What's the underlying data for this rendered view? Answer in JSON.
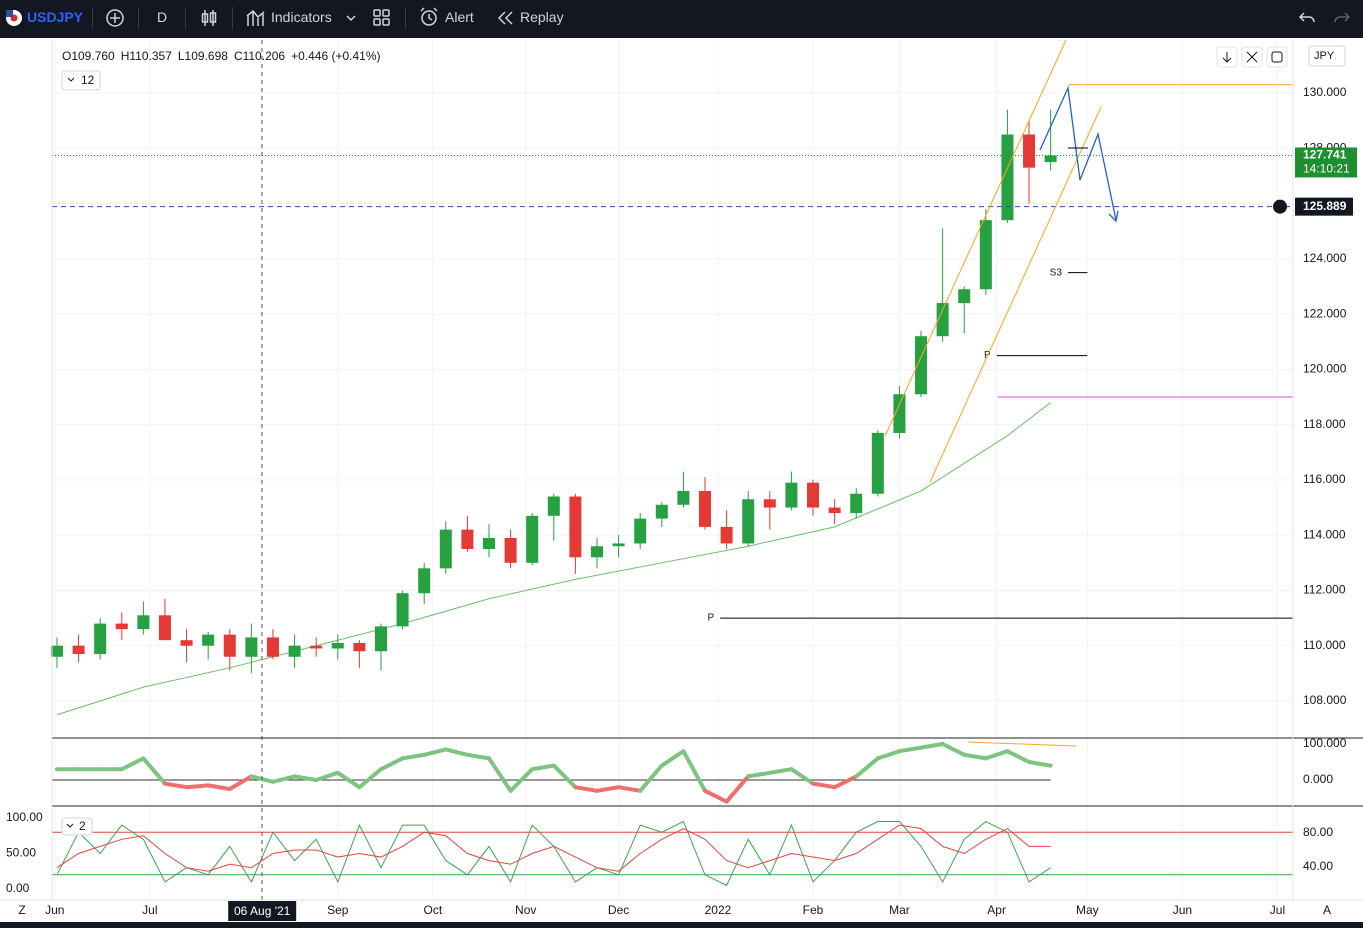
{
  "toolbar": {
    "symbol": "USDJPY",
    "interval": "D",
    "indicators": "Indicators",
    "alert": "Alert",
    "replay": "Replay"
  },
  "legend": {
    "ohlc": [
      "O109.760",
      "H110.357",
      "L109.698",
      "C110.206",
      "+0.446 (+0.41%)"
    ],
    "indicator_count": "12",
    "stoch_count": "2"
  },
  "currency": "JPY",
  "corner_labels": [
    "Z",
    "A"
  ],
  "chart_data": [
    {
      "type": "candlestick",
      "up_color": "#26a041",
      "down_color": "#e53935",
      "x": [
        0,
        1,
        2,
        3,
        4,
        5,
        6,
        7,
        8,
        9,
        10,
        11,
        12,
        13,
        14,
        15,
        16,
        17,
        18,
        19,
        20,
        21,
        22,
        23,
        24,
        25,
        26,
        27,
        28,
        29,
        30,
        31,
        32,
        33,
        34,
        35,
        36,
        37,
        38,
        39,
        40,
        41,
        42,
        43,
        44,
        45,
        46
      ],
      "open": [
        109.6,
        110.0,
        109.7,
        110.8,
        110.6,
        111.1,
        110.2,
        110.0,
        110.4,
        109.6,
        110.3,
        109.6,
        110.0,
        109.9,
        110.1,
        109.8,
        110.7,
        111.9,
        112.8,
        114.2,
        113.5,
        113.9,
        113.0,
        114.7,
        115.4,
        113.2,
        113.6,
        113.7,
        114.6,
        115.1,
        115.6,
        114.3,
        113.7,
        115.3,
        115.0,
        115.9,
        115.0,
        114.8,
        115.5,
        117.7,
        119.1,
        121.2,
        122.4,
        122.9,
        125.4,
        128.5,
        127.5
      ],
      "high": [
        110.3,
        110.4,
        111.0,
        111.2,
        111.6,
        111.7,
        110.6,
        110.5,
        110.6,
        110.8,
        110.6,
        110.4,
        110.3,
        110.4,
        110.2,
        110.8,
        112.0,
        113.0,
        114.5,
        114.7,
        114.4,
        114.2,
        114.8,
        115.5,
        115.5,
        113.9,
        114.0,
        114.8,
        115.2,
        116.3,
        116.1,
        114.9,
        115.6,
        115.6,
        116.3,
        116.0,
        115.3,
        115.7,
        117.8,
        119.4,
        121.4,
        125.1,
        123.0,
        125.8,
        129.4,
        129.0,
        129.4
      ],
      "low": [
        109.2,
        109.4,
        109.5,
        110.2,
        110.4,
        110.3,
        109.4,
        109.5,
        109.1,
        109.0,
        109.5,
        109.2,
        109.6,
        109.5,
        109.2,
        109.1,
        110.6,
        111.5,
        112.6,
        113.4,
        113.2,
        112.8,
        112.9,
        113.8,
        112.6,
        112.8,
        113.2,
        113.5,
        114.3,
        115.0,
        114.2,
        113.5,
        113.6,
        114.2,
        114.9,
        114.7,
        114.4,
        114.6,
        115.4,
        117.5,
        119.0,
        121.0,
        121.3,
        122.7,
        125.3,
        126.0,
        127.2
      ],
      "close": [
        110.0,
        109.7,
        110.8,
        110.6,
        111.1,
        110.2,
        110.0,
        110.4,
        109.6,
        110.3,
        109.6,
        110.0,
        109.9,
        110.1,
        109.8,
        110.7,
        111.9,
        112.8,
        114.2,
        113.5,
        113.9,
        113.0,
        114.7,
        115.4,
        113.2,
        113.6,
        113.7,
        114.6,
        115.1,
        115.6,
        114.3,
        113.7,
        115.3,
        115.0,
        115.9,
        115.0,
        114.8,
        115.5,
        117.7,
        119.1,
        121.2,
        122.4,
        122.9,
        125.4,
        128.5,
        127.3,
        127.741
      ],
      "lines": [
        {
          "color": "#6abf69",
          "x": [
            0,
            4,
            8,
            12,
            16,
            20,
            24,
            28,
            32,
            36,
            40,
            44,
            46
          ],
          "values": [
            107.5,
            108.5,
            109.2,
            110.0,
            110.8,
            111.7,
            112.4,
            113.0,
            113.6,
            114.3,
            115.6,
            117.6,
            118.8
          ]
        }
      ],
      "levels": [
        {
          "value": 130.3,
          "color": "#f5a623",
          "xrange": [
            46.8,
            57.22
          ]
        },
        {
          "value": 123.5,
          "color": "#000000",
          "xrange": [
            46.8,
            47.7
          ],
          "label": "S3"
        },
        {
          "value": 120.5,
          "color": "#000000",
          "xrange": [
            43.5,
            47.7
          ],
          "label": "P"
        },
        {
          "value": 119.0,
          "color": "#d34bd3",
          "xrange": [
            43.56,
            57.22
          ]
        },
        {
          "value": 111.0,
          "color": "#000000",
          "xrange": [
            30.7,
            57.22
          ],
          "label": "P"
        }
      ],
      "last_price": {
        "value": 127.741,
        "label": "127.741",
        "timer": "14:10:21",
        "color": "#1e8f2e"
      },
      "crosshair_price": {
        "value": 125.889,
        "label": "125.889"
      },
      "xlim": [
        -0.23,
        57.22
      ],
      "xticks": [
        {
          "value": -0.1,
          "label": "Jun"
        },
        {
          "value": 4.3,
          "label": "Jul"
        },
        {
          "value": 13.0,
          "label": "Sep"
        },
        {
          "value": 17.4,
          "label": "Oct"
        },
        {
          "value": 21.7,
          "label": "Nov"
        },
        {
          "value": 26.0,
          "label": "Dec"
        },
        {
          "value": 30.6,
          "label": "2022"
        },
        {
          "value": 35.0,
          "label": "Feb"
        },
        {
          "value": 39.0,
          "label": "Mar"
        },
        {
          "value": 43.5,
          "label": "Apr"
        },
        {
          "value": 47.7,
          "label": "May"
        },
        {
          "value": 52.1,
          "label": "Jun"
        },
        {
          "value": 56.5,
          "label": "Jul"
        }
      ],
      "crosshair_x": {
        "value": 9.5,
        "label": "06 Aug '21"
      },
      "ylim": [
        106.66,
        131.92
      ],
      "yticks": [
        {
          "value": 108,
          "label": "108.000"
        },
        {
          "value": 110,
          "label": "110.000"
        },
        {
          "value": 112,
          "label": "112.000"
        },
        {
          "value": 114,
          "label": "114.000"
        },
        {
          "value": 116,
          "label": "116.000"
        },
        {
          "value": 118,
          "label": "118.000"
        },
        {
          "value": 120,
          "label": "120.000"
        },
        {
          "value": 122,
          "label": "122.000"
        },
        {
          "value": 124,
          "label": "124.000"
        },
        {
          "value": 126,
          "label": "126.000"
        },
        {
          "value": 128,
          "label": "128.000"
        },
        {
          "value": 130,
          "label": "130.000"
        }
      ],
      "grid": true
    },
    {
      "type": "oscillator",
      "pos_color": "#7cc47f",
      "neg_color": "#ef6f6c",
      "values": [
        30,
        30,
        30,
        30,
        60,
        -10,
        -20,
        -15,
        -25,
        10,
        -5,
        10,
        0,
        20,
        -20,
        30,
        60,
        70,
        85,
        70,
        60,
        -30,
        30,
        40,
        -20,
        -30,
        -20,
        -30,
        40,
        80,
        -30,
        -60,
        10,
        20,
        30,
        -10,
        -20,
        10,
        60,
        80,
        90,
        100,
        70,
        60,
        80,
        50,
        40
      ],
      "ylim": [
        -72.2,
        111.1
      ],
      "yticks": [
        {
          "value": 0,
          "label": "0.000"
        },
        {
          "value": 100,
          "label": "100.000"
        }
      ]
    },
    {
      "type": "stochastic",
      "series": [
        {
          "color": "#3fa34d",
          "values": [
            20,
            80,
            50,
            90,
            70,
            10,
            30,
            20,
            60,
            10,
            80,
            40,
            70,
            10,
            90,
            30,
            90,
            90,
            40,
            20,
            60,
            10,
            90,
            60,
            10,
            30,
            20,
            90,
            80,
            95,
            20,
            5,
            70,
            20,
            90,
            10,
            40,
            80,
            95,
            95,
            60,
            10,
            70,
            95,
            80,
            10,
            30
          ]
        },
        {
          "color": "#e0463f",
          "values": [
            30,
            50,
            60,
            70,
            75,
            50,
            30,
            25,
            35,
            30,
            50,
            55,
            55,
            45,
            50,
            45,
            60,
            80,
            75,
            50,
            40,
            35,
            50,
            60,
            45,
            30,
            25,
            50,
            70,
            85,
            70,
            40,
            30,
            40,
            50,
            45,
            40,
            50,
            70,
            90,
            85,
            60,
            50,
            70,
            85,
            60,
            60
          ]
        }
      ],
      "levels": [
        {
          "value": 80,
          "color": "#e0463f"
        },
        {
          "value": 20,
          "color": "#3fa34d"
        }
      ],
      "ylim": [
        -15.5,
        114.1
      ],
      "yticks": [
        {
          "value": 0,
          "label": "0.00"
        },
        {
          "value": 50,
          "label": "50.00"
        },
        {
          "value": 100,
          "label": "100.00"
        }
      ],
      "y2lim": [
        1.2,
        109.4
      ],
      "y2ticks": [
        {
          "value": 40,
          "label": "40.00"
        },
        {
          "value": 80,
          "label": "80.00"
        }
      ]
    }
  ]
}
